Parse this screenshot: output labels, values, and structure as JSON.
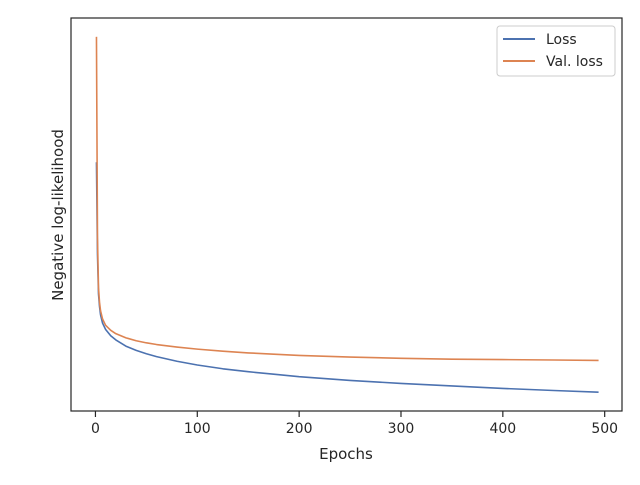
{
  "chart_data": {
    "type": "line",
    "xlabel": "Epochs",
    "ylabel": "Negative log-likelihood",
    "xlim": [
      -24,
      517
    ],
    "x_ticks": [
      0,
      100,
      200,
      300,
      400,
      500
    ],
    "y_ticks_shown": false,
    "grid": false,
    "legend_position": "top-right",
    "series": [
      {
        "name": "Loss",
        "color": "#4c72b0",
        "x": [
          1,
          2,
          3,
          4,
          5,
          7,
          10,
          15,
          20,
          30,
          40,
          50,
          60,
          80,
          100,
          125,
          150,
          175,
          200,
          250,
          300,
          350,
          400,
          450,
          494
        ],
        "y": [
          6.4,
          4.2,
          3.25,
          2.95,
          2.75,
          2.55,
          2.4,
          2.25,
          2.15,
          2.0,
          1.9,
          1.82,
          1.75,
          1.64,
          1.55,
          1.46,
          1.39,
          1.33,
          1.27,
          1.18,
          1.11,
          1.05,
          0.99,
          0.94,
          0.9
        ]
      },
      {
        "name": "Val. loss",
        "color": "#dd8452",
        "x": [
          1,
          2,
          3,
          4,
          5,
          7,
          10,
          15,
          20,
          30,
          40,
          50,
          60,
          80,
          100,
          125,
          150,
          175,
          200,
          250,
          300,
          350,
          400,
          450,
          494
        ],
        "y": [
          9.4,
          4.6,
          3.4,
          3.05,
          2.85,
          2.65,
          2.5,
          2.38,
          2.3,
          2.2,
          2.13,
          2.08,
          2.04,
          1.98,
          1.93,
          1.88,
          1.84,
          1.81,
          1.78,
          1.74,
          1.71,
          1.69,
          1.68,
          1.67,
          1.66
        ]
      }
    ]
  }
}
